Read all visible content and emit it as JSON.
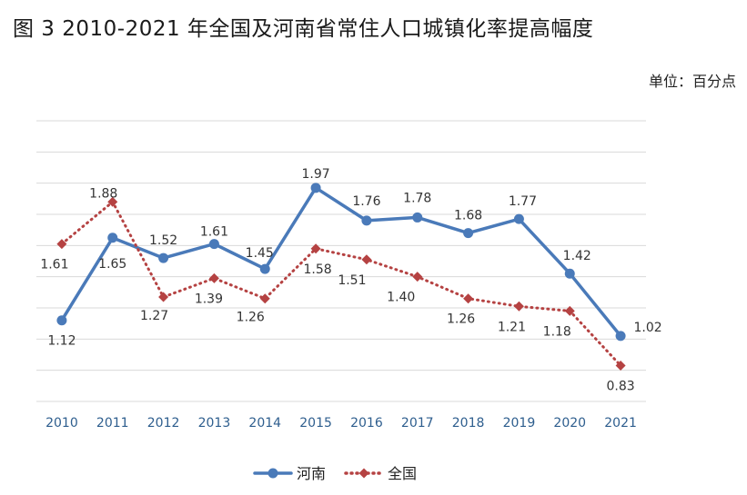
{
  "title": "图 3   2010-2021 年全国及河南省常住人口城镇化率提高幅度",
  "unit_label": "单位：百分点",
  "chart_data": {
    "type": "line",
    "title": "图 3   2010-2021 年全国及河南省常住人口城镇化率提高幅度",
    "unit": "单位：百分点",
    "categories": [
      "2010",
      "2011",
      "2012",
      "2013",
      "2014",
      "2015",
      "2016",
      "2017",
      "2018",
      "2019",
      "2020",
      "2021"
    ],
    "ylim": [
      0.6,
      2.4
    ],
    "grid": true,
    "legend_position": "bottom",
    "series": [
      {
        "name": "河南",
        "color": "#4a7ab9",
        "style": "solid",
        "marker": "circle",
        "values": [
          1.12,
          1.65,
          1.52,
          1.61,
          1.45,
          1.97,
          1.76,
          1.78,
          1.68,
          1.77,
          1.42,
          1.02
        ]
      },
      {
        "name": "全国",
        "color": "#b54242",
        "style": "dotted",
        "marker": "diamond",
        "values": [
          1.61,
          1.88,
          1.27,
          1.39,
          1.26,
          1.58,
          1.51,
          1.4,
          1.26,
          1.21,
          1.18,
          0.83
        ]
      }
    ]
  }
}
